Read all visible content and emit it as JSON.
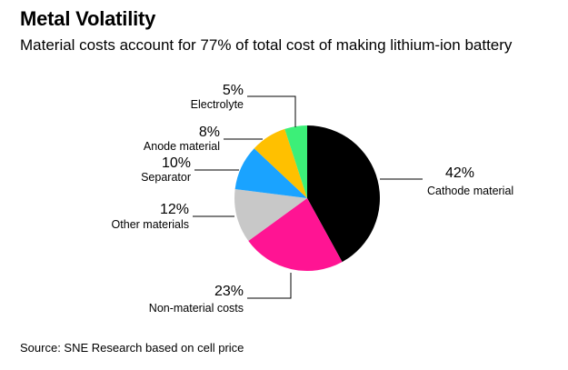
{
  "title": "Metal Volatility",
  "subtitle": "Material costs account for 77% of total cost of making lithium-ion battery",
  "source": "Source: SNE Research based on cell price",
  "chart_data": {
    "type": "pie",
    "title": "Metal Volatility",
    "subtitle": "Material costs account for 77% of total cost of making lithium-ion battery",
    "slices": [
      {
        "label": "Cathode material",
        "value": 42,
        "value_label": "42%",
        "color": "#000000"
      },
      {
        "label": "Non-material costs",
        "value": 23,
        "value_label": "23%",
        "color": "#ff1493"
      },
      {
        "label": "Other materials",
        "value": 12,
        "value_label": "12%",
        "color": "#c8c8c8"
      },
      {
        "label": "Separator",
        "value": 10,
        "value_label": "10%",
        "color": "#1aa3ff"
      },
      {
        "label": "Anode material",
        "value": 8,
        "value_label": "8%",
        "color": "#ffc000"
      },
      {
        "label": "Electrolyte",
        "value": 5,
        "value_label": "5%",
        "color": "#3cef78"
      }
    ],
    "start": "12 o'clock",
    "direction": "clockwise",
    "source": "Source: SNE Research based on cell price"
  }
}
